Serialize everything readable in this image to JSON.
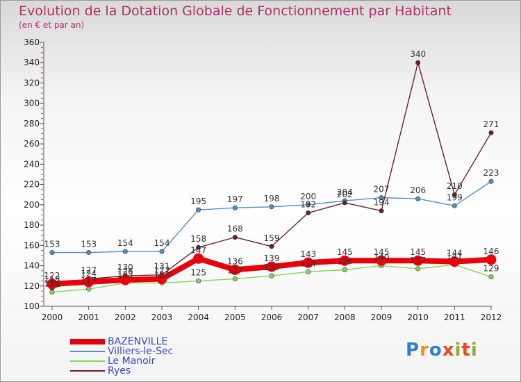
{
  "title": "Evolution de la Dotation Globale de Fonctionnement par Habitant",
  "subtitle": "(en € et par an)",
  "brand": {
    "letters": [
      "P",
      "r",
      "o",
      "x",
      "i",
      "t",
      "i"
    ],
    "colors": [
      "#2a7fd4",
      "#f28a1e",
      "#2a7fd4",
      "#e8491d",
      "#84b32b",
      "#e8491d",
      "#84b32b"
    ]
  },
  "chart_data": {
    "type": "line",
    "title": "Evolution de la Dotation Globale de Fonctionnement par Habitant",
    "subtitle": "(en € et par an)",
    "xlabel": "",
    "ylabel": "",
    "ylim": [
      100,
      360
    ],
    "yticks": [
      100,
      120,
      140,
      160,
      180,
      200,
      220,
      240,
      260,
      280,
      300,
      320,
      340,
      360
    ],
    "x": [
      "2000",
      "2001",
      "2002",
      "2003",
      "2004",
      "2005",
      "2006",
      "2007",
      "2008",
      "2009",
      "2010",
      "2011",
      "2012"
    ],
    "grid": false,
    "legend_position": "bottom-left",
    "series": [
      {
        "name": "BAZENVILLE",
        "color": "#e8000b",
        "width": "thick",
        "values": [
          122,
          124,
          126,
          127,
          147,
          136,
          139,
          143,
          145,
          145,
          145,
          144,
          146
        ]
      },
      {
        "name": "Villiers-le-Sec",
        "color": "#4f8fc8",
        "width": "thin",
        "values": [
          153,
          153,
          154,
          154,
          195,
          197,
          198,
          200,
          204,
          207,
          206,
          199,
          223
        ]
      },
      {
        "name": "Le Manoir",
        "color": "#7ed957",
        "width": "thin",
        "values": [
          114,
          117,
          123,
          123,
          125,
          127,
          130,
          134,
          136,
          140,
          137,
          141,
          129
        ]
      },
      {
        "name": "Ryes",
        "color": "#6b1f2a",
        "width": "thin",
        "values": [
          118,
          127,
          130,
          131,
          158,
          168,
          159,
          192,
          202,
          194,
          340,
          210,
          271
        ]
      }
    ],
    "data_labels": {
      "BAZENVILLE": [
        "122",
        "124",
        "126",
        "127",
        "147",
        "136",
        "139",
        "143",
        "145",
        "145",
        "145",
        "144",
        "146"
      ],
      "Villiers-le-Sec": [
        "153",
        "153",
        "154",
        "154",
        "195",
        "197",
        "198",
        "200",
        "204",
        "207",
        "206",
        "199",
        "223"
      ],
      "Le Manoir": [
        "114",
        "117",
        "123",
        "123",
        "125",
        "127",
        "130",
        "134",
        "136",
        "140",
        "137",
        "141",
        "129"
      ],
      "Ryes": [
        "118",
        "127",
        "130",
        "131",
        "158",
        "168",
        "159",
        "192",
        "202",
        "194",
        "340",
        "210",
        "271"
      ]
    }
  }
}
